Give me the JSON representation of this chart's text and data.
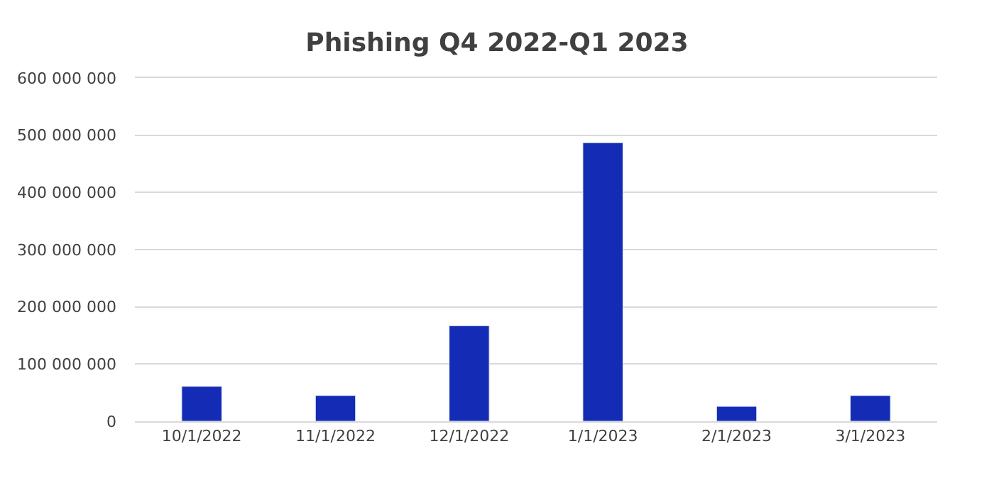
{
  "chart_data": {
    "type": "bar",
    "title": "Phishing Q4 2022-Q1 2023",
    "categories": [
      "10/1/2022",
      "11/1/2022",
      "12/1/2022",
      "1/1/2023",
      "2/1/2023",
      "3/1/2023"
    ],
    "values": [
      61000000,
      45000000,
      167000000,
      487000000,
      26000000,
      45000000
    ],
    "color": "#132bb5",
    "ylim": [
      0,
      600000000
    ],
    "yticks": [
      {
        "value": 0,
        "label": "0"
      },
      {
        "value": 100000000,
        "label": "100 000 000"
      },
      {
        "value": 200000000,
        "label": "200 000 000"
      },
      {
        "value": 300000000,
        "label": "300 000 000"
      },
      {
        "value": 400000000,
        "label": "400 000 000"
      },
      {
        "value": 500000000,
        "label": "500 000 000"
      },
      {
        "value": 600000000,
        "label": "600 000 000"
      }
    ],
    "grid": "y"
  }
}
